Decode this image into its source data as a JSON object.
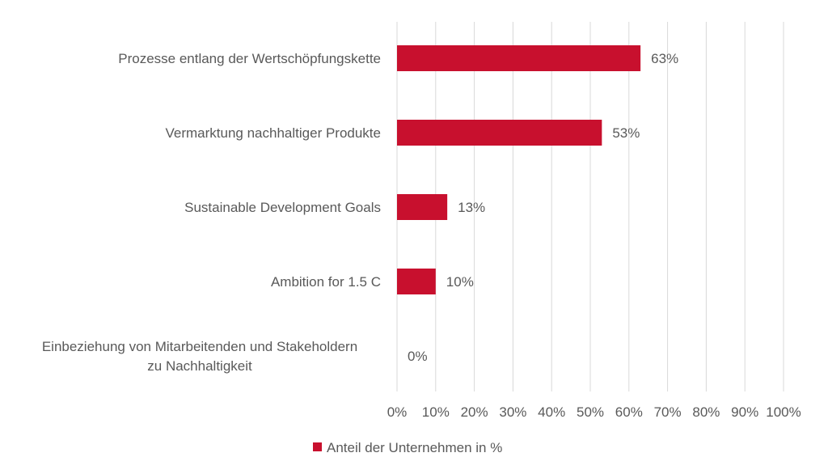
{
  "chart_data": {
    "type": "bar",
    "orientation": "horizontal",
    "categories": [
      "Prozesse entlang der Wertschöpfungskette",
      "Vermarktung nachhaltiger Produkte",
      "Sustainable Development Goals",
      "Ambition for 1.5 C",
      "Einbeziehung von Mitarbeitenden und Stakeholdern zu Nachhaltigkeit"
    ],
    "category_lines": [
      [
        "Prozesse entlang der Wertschöpfungskette"
      ],
      [
        "Vermarktung nachhaltiger Produkte"
      ],
      [
        "Sustainable Development Goals"
      ],
      [
        "Ambition for 1.5 C"
      ],
      [
        "Einbeziehung von Mitarbeitenden und Stakeholdern",
        "zu Nachhaltigkeit"
      ]
    ],
    "series": [
      {
        "name": "Anteil der Unternehmen in %",
        "values": [
          63,
          53,
          13,
          10,
          0
        ],
        "color": "#c8102e"
      }
    ],
    "data_labels": [
      "63%",
      "53%",
      "13%",
      "10%",
      "0%"
    ],
    "xlim": [
      0,
      100
    ],
    "x_ticks": [
      0,
      10,
      20,
      30,
      40,
      50,
      60,
      70,
      80,
      90,
      100
    ],
    "x_tick_labels": [
      "0%",
      "10%",
      "20%",
      "30%",
      "40%",
      "50%",
      "60%",
      "70%",
      "80%",
      "90%",
      "100%"
    ],
    "grid": "vertical",
    "legend_position": "bottom",
    "title": "",
    "xlabel": "",
    "ylabel": ""
  }
}
